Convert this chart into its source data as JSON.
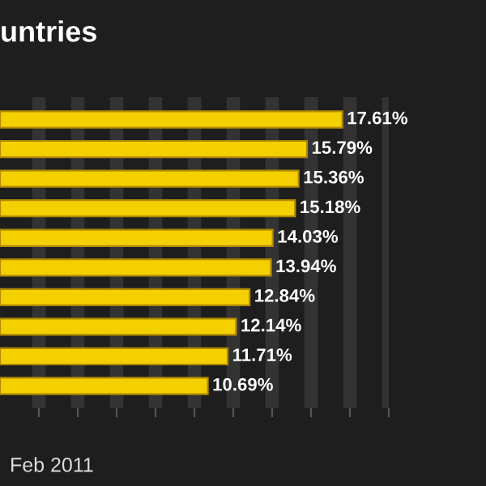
{
  "chart_data": {
    "type": "bar",
    "orientation": "horizontal",
    "title": "untries",
    "categories": [
      null,
      null,
      null,
      null,
      null,
      null,
      null,
      null,
      null,
      null
    ],
    "values": [
      17.61,
      15.79,
      15.36,
      15.18,
      14.03,
      13.94,
      12.84,
      12.14,
      11.71,
      10.69
    ],
    "color": "#f5d000",
    "value_labels": [
      "17.61%",
      "15.79%",
      "15.36%",
      "15.18%",
      "14.03%",
      "13.94%",
      "12.84%",
      "12.14%",
      "11.71%",
      "10.69%"
    ],
    "xlim": [
      0,
      20
    ],
    "xticks": [
      {
        "value": 2,
        "label": null
      },
      {
        "value": 4,
        "label": null
      },
      {
        "value": 6,
        "label": null
      },
      {
        "value": 8,
        "label": null
      },
      {
        "value": 10,
        "label": null
      },
      {
        "value": 12,
        "label": null
      },
      {
        "value": 14,
        "label": null
      },
      {
        "value": 16,
        "label": null
      },
      {
        "value": 18,
        "label": null
      },
      {
        "value": 20,
        "label": null
      }
    ],
    "grid": "x",
    "annotations": [
      "Feb 2011"
    ]
  }
}
